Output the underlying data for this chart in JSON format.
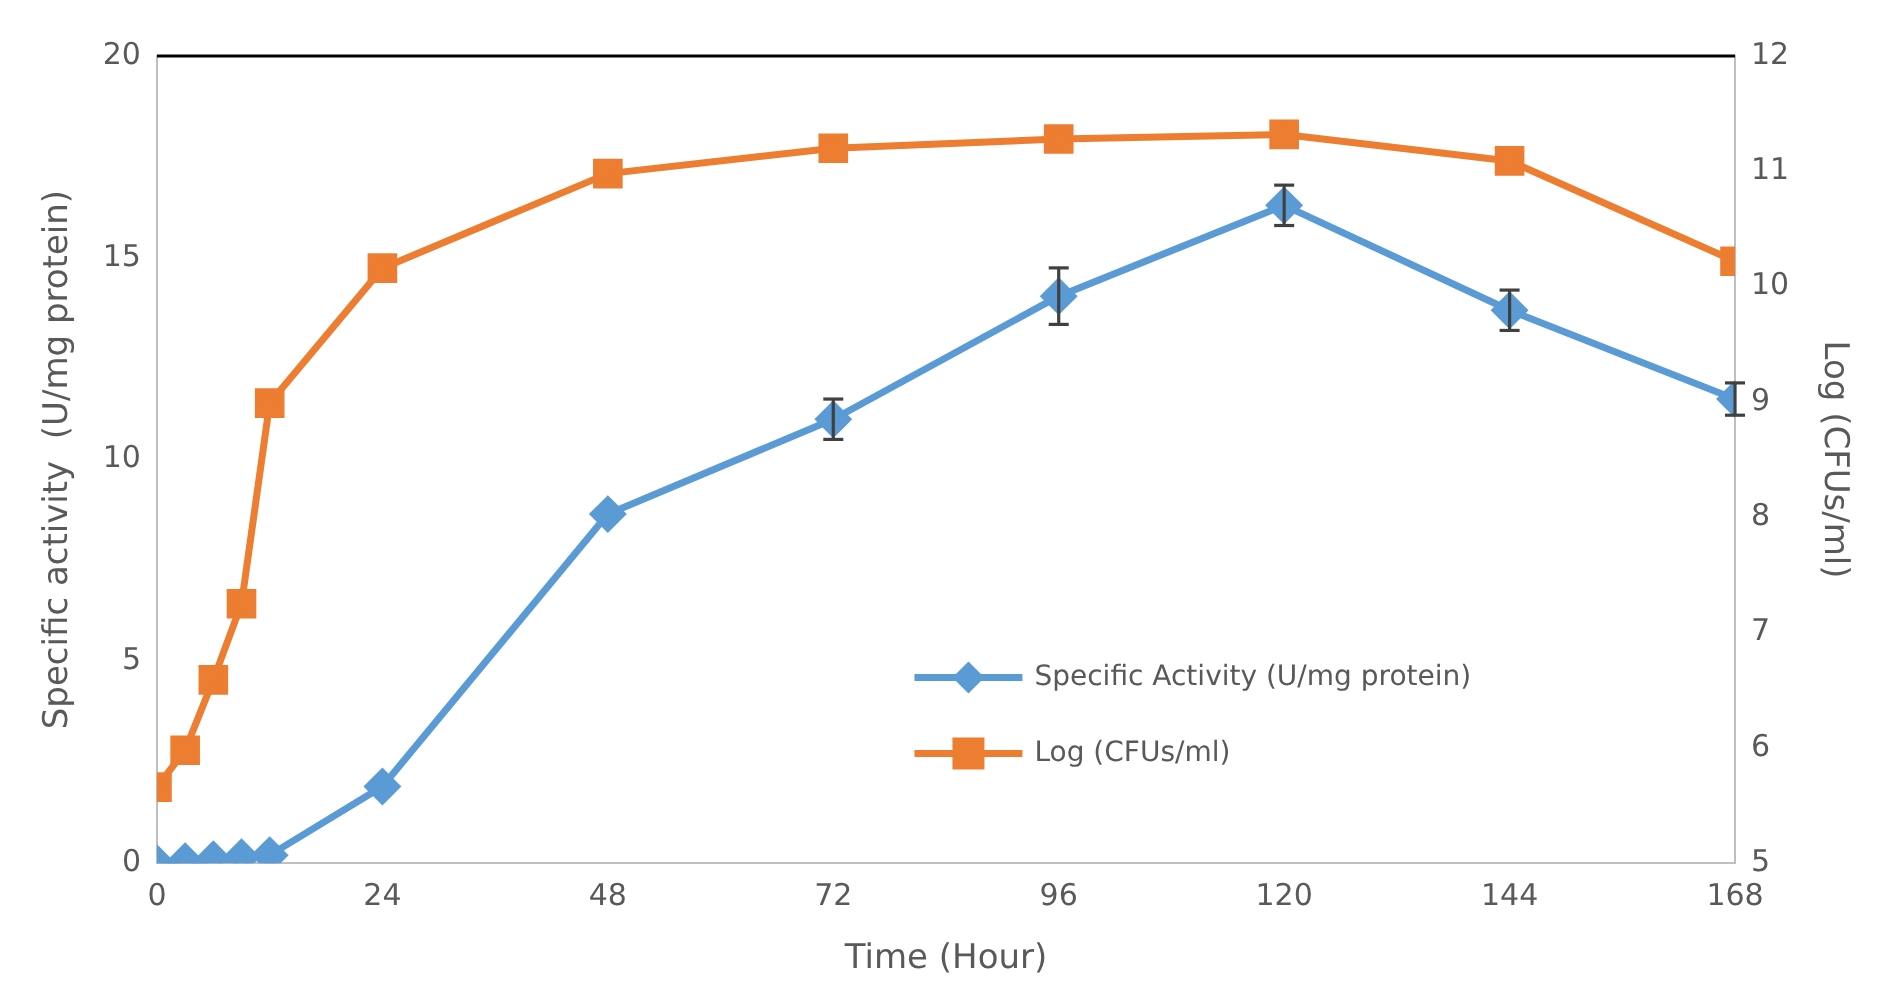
{
  "chart_data": {
    "type": "line",
    "xlabel": "Time (Hour)",
    "ylabel": "Specific activity  (U/mg protein)",
    "y2label": "Log (CFUs/ml)",
    "x": [
      0,
      3,
      6,
      9,
      12,
      24,
      48,
      72,
      96,
      120,
      144,
      168
    ],
    "series": [
      {
        "name": "Specific Activity (U/mg protein)",
        "color": "#5b9bd5",
        "marker": "diamond",
        "values": [
          0,
          0.05,
          0.1,
          0.15,
          0.2,
          1.9,
          8.65,
          11.0,
          14.05,
          16.3,
          13.7,
          11.5
        ],
        "errors": [
          null,
          null,
          null,
          null,
          null,
          null,
          null,
          0.5,
          0.7,
          0.5,
          0.5,
          0.4
        ]
      },
      {
        "name": "Log (CFUs/ml)",
        "color": "#ed7d31",
        "marker": "square",
        "axis": "y2",
        "values": [
          5.66,
          5.98,
          6.59,
          7.25,
          8.99,
          10.16,
          10.98,
          11.2,
          11.28,
          11.32,
          11.09,
          10.22
        ]
      }
    ],
    "xlim": [
      0,
      168
    ],
    "xticks": [
      0,
      24,
      48,
      72,
      96,
      120,
      144,
      168
    ],
    "ylim": [
      0,
      20
    ],
    "yticks": [
      0,
      5,
      10,
      15,
      20
    ],
    "y2lim": [
      5,
      12
    ],
    "y2ticks": [
      5,
      6,
      7,
      8,
      9,
      10,
      11,
      12
    ],
    "grid": false,
    "legend": "right",
    "line_style": "solid"
  }
}
